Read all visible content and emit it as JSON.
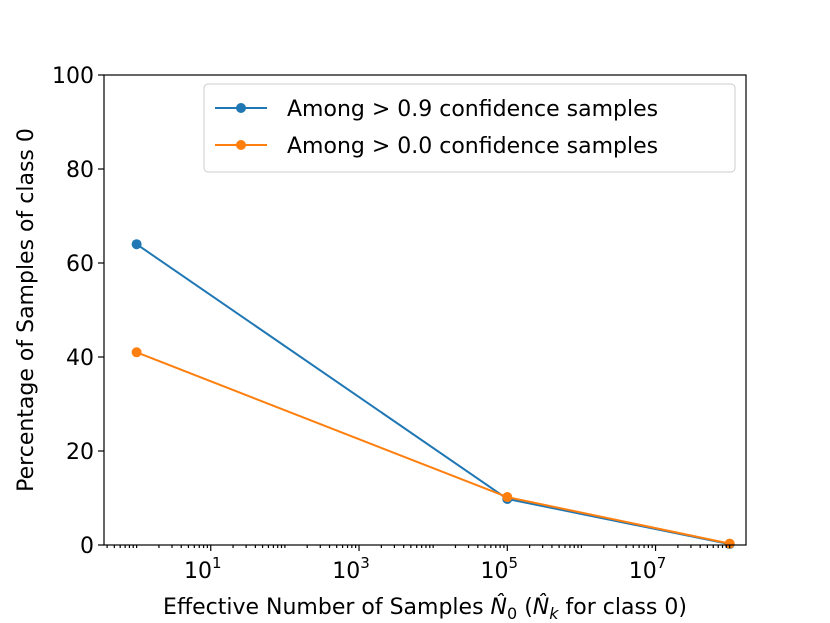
{
  "chart_data": {
    "type": "line",
    "title": "",
    "xlabel": "Effective Number of Samples N̂₀ (N̂ₖ for class 0)",
    "ylabel": "Percentage of Samples of class 0",
    "xscale": "log",
    "x": [
      1,
      100000,
      100000000
    ],
    "ylim": [
      0,
      100
    ],
    "yticks": [
      0,
      20,
      40,
      60,
      80,
      100
    ],
    "ytick_labels": [
      "0",
      "20",
      "40",
      "60",
      "80",
      "100"
    ],
    "xticks": [
      {
        "value": 10,
        "base": "10",
        "exp": "1"
      },
      {
        "value": 1000,
        "base": "10",
        "exp": "3"
      },
      {
        "value": 100000,
        "base": "10",
        "exp": "5"
      },
      {
        "value": 10000000,
        "base": "10",
        "exp": "7"
      }
    ],
    "legend_position": "top-right",
    "series": [
      {
        "name": "Among > 0.9 confidence samples",
        "color": "#1f77b4",
        "values": [
          64,
          9.8,
          0.2
        ]
      },
      {
        "name": "Among > 0.0 confidence samples",
        "color": "#ff7f0e",
        "values": [
          41,
          10.2,
          0.3
        ]
      }
    ]
  }
}
